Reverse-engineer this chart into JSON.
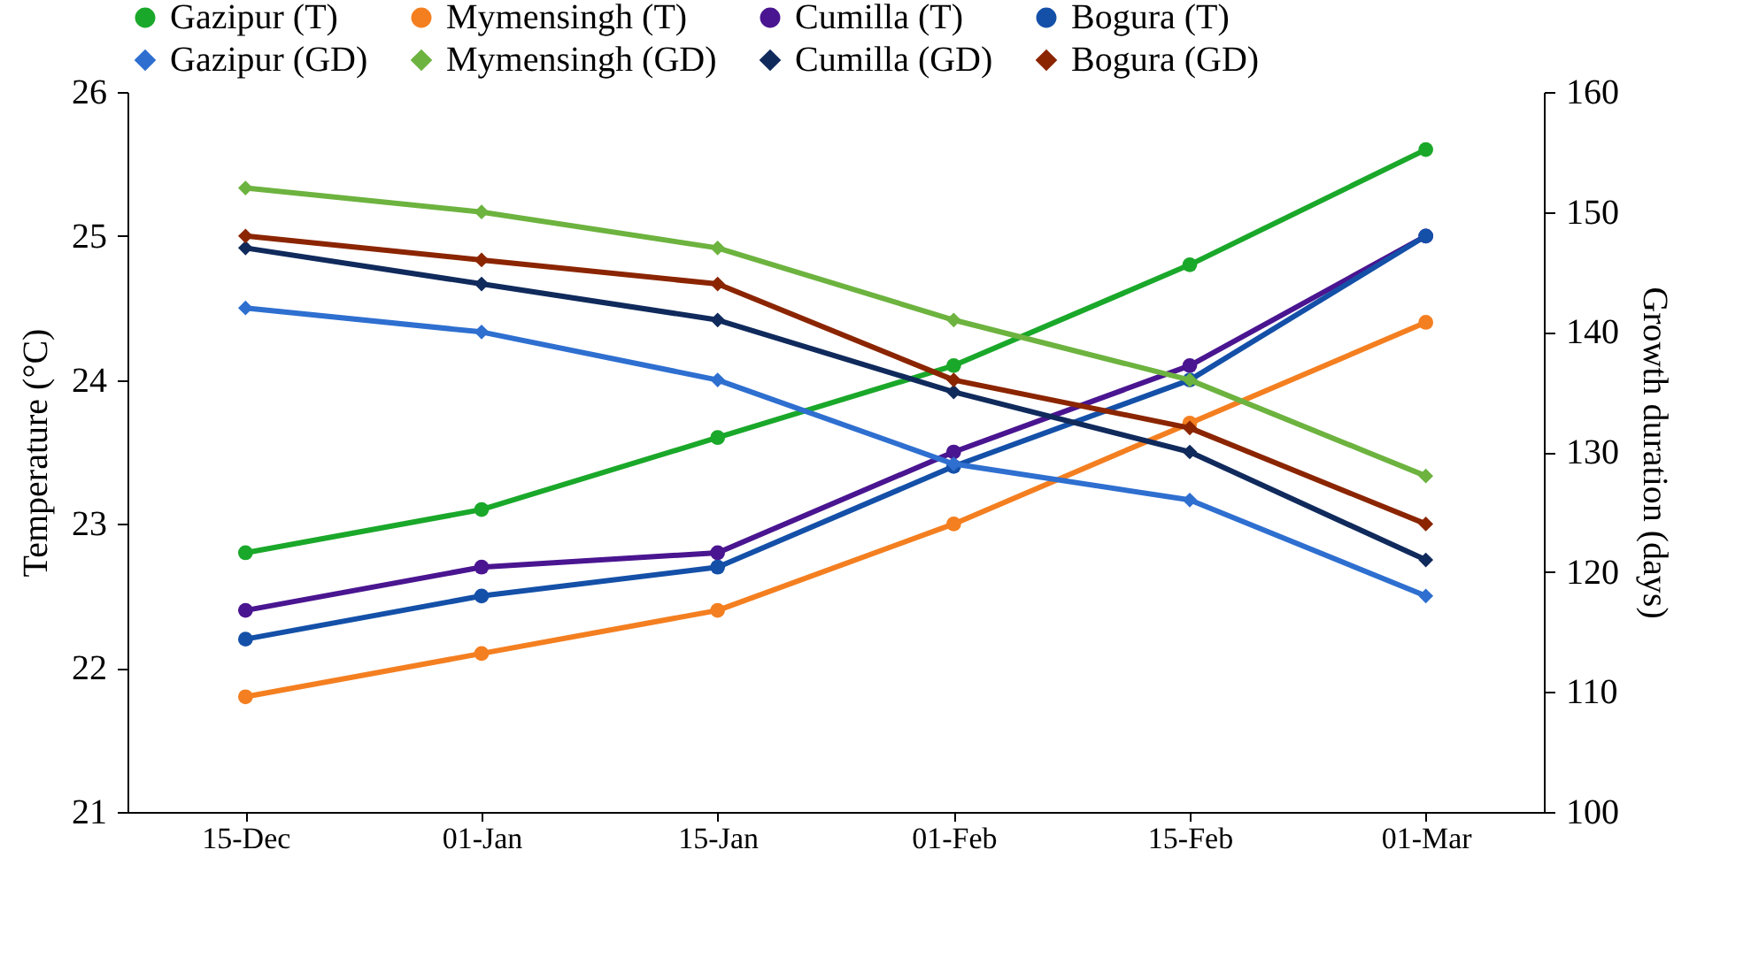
{
  "chart_data": {
    "type": "line",
    "xlabel": null,
    "ylabel": "Temperature (°C)",
    "y2label": "Growth duration (days)",
    "categories": [
      "15-Dec",
      "01-Jan",
      "15-Jan",
      "01-Feb",
      "15-Feb",
      "01-Mar"
    ],
    "ylim": [
      21,
      26
    ],
    "yticks": [
      21,
      22,
      23,
      24,
      25,
      26
    ],
    "y2lim": [
      100,
      160
    ],
    "y2ticks": [
      100,
      110,
      120,
      130,
      140,
      150,
      160
    ],
    "grid": false,
    "legend": "top",
    "series": [
      {
        "name": "Gazipur (T)",
        "color": "#1aa82a",
        "marker": "circle",
        "values": [
          22.8,
          23.1,
          23.6,
          24.1,
          24.8,
          25.6
        ]
      },
      {
        "name": "Mymensingh (T)",
        "color": "#f47f20",
        "marker": "circle",
        "values": [
          21.8,
          22.1,
          22.4,
          23.0,
          23.7,
          24.4
        ]
      },
      {
        "name": "Cumilla (T)",
        "color": "#4a1590",
        "marker": "circle",
        "values": [
          22.4,
          22.7,
          22.8,
          23.5,
          24.1,
          25.0
        ]
      },
      {
        "name": "Bogura (T)",
        "color": "#1450a8",
        "marker": "circle",
        "values": [
          22.2,
          22.5,
          22.7,
          23.4,
          24.0,
          25.0
        ]
      },
      {
        "name": "Gazipur (GD)",
        "color": "#2e6fd0",
        "marker": "diamond",
        "axis": "y2",
        "values": [
          142,
          140,
          136,
          129,
          126,
          118
        ]
      },
      {
        "name": "Mymensingh (GD)",
        "color": "#6db33f",
        "marker": "diamond",
        "axis": "y2",
        "values": [
          152,
          150,
          147,
          141,
          136,
          128
        ]
      },
      {
        "name": "Cumilla (GD)",
        "color": "#102a5c",
        "marker": "diamond",
        "axis": "y2",
        "values": [
          147,
          144,
          141,
          135,
          130,
          121
        ]
      },
      {
        "name": "Bogura (GD)",
        "color": "#8b2500",
        "marker": "diamond",
        "axis": "y2",
        "values": [
          148,
          146,
          144,
          136,
          132,
          124
        ]
      }
    ]
  }
}
